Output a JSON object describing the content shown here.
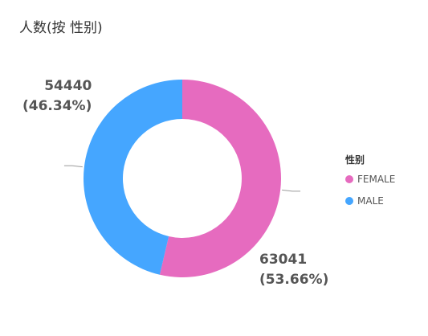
{
  "title": "人数(按 性别)",
  "chart_data": {
    "type": "pie",
    "donut": true,
    "title": "人数(按 性别)",
    "legend_title": "性别",
    "legend_position": "right",
    "categories": [
      "FEMALE",
      "MALE"
    ],
    "values": [
      63041,
      54440
    ],
    "percent_labels": [
      "(53.66%)",
      "(46.34%)"
    ],
    "colors": [
      "#E66BBF",
      "#45A6FF"
    ],
    "start": "top",
    "direction": "clockwise"
  },
  "labels": {
    "female_value": "63041",
    "female_percent": "(53.66%)",
    "male_value": "54440",
    "male_percent": "(46.34%)"
  },
  "legend": {
    "title": "性别",
    "items": [
      {
        "label": "FEMALE",
        "color": "#E66BBF"
      },
      {
        "label": "MALE",
        "color": "#45A6FF"
      }
    ]
  }
}
